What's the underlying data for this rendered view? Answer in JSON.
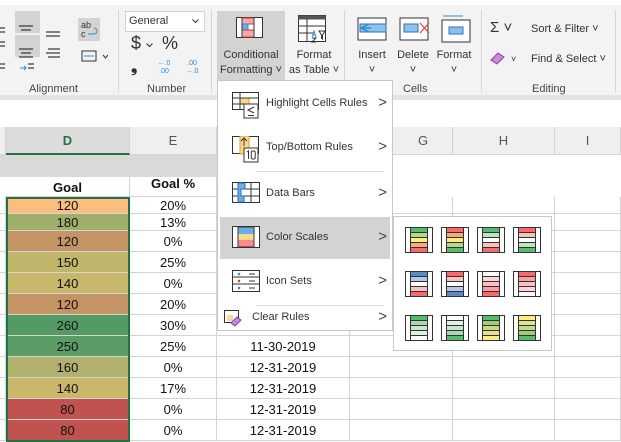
{
  "ribbon": {
    "alignment": {
      "label": "Alignment"
    },
    "number": {
      "label": "Number",
      "format_value": "General",
      "currency_symbol": "$",
      "percent_symbol": "%",
      "comma_symbol": "❟",
      "inc_decimal": "←.0 .00",
      "dec_decimal": ".00 →.0"
    },
    "styles": {
      "conditional_formatting": "Conditional",
      "conditional_formatting_2": "Formatting ˅",
      "format_as_table": "Format",
      "format_as_table_2": "as Table ˅"
    },
    "cells": {
      "label": "Cells",
      "insert": "Insert",
      "delete": "Delete",
      "format": "Format",
      "chev": "˅"
    },
    "editing": {
      "label": "Editing",
      "sum_symbol": "Σ ˅",
      "eraser_chev": "˅",
      "sort_filter": "Sort & Filter ˅",
      "find_select": "Find & Select ˅"
    }
  },
  "columns": [
    "D",
    "E",
    "G",
    "H",
    "I"
  ],
  "headers": {
    "goal": "Goal",
    "goal_pct": "Goal %"
  },
  "rows": [
    {
      "goal": "120",
      "pct": "20%",
      "date": "",
      "color": "#fbbe7f"
    },
    {
      "goal": "180",
      "pct": "13%",
      "date": "",
      "color": "#9eaf6b"
    },
    {
      "goal": "120",
      "pct": "0%",
      "date": "",
      "color": "#c59464"
    },
    {
      "goal": "150",
      "pct": "25%",
      "date": "",
      "color": "#bfb66c"
    },
    {
      "goal": "140",
      "pct": "0%",
      "date": "",
      "color": "#c9b86b"
    },
    {
      "goal": "120",
      "pct": "20%",
      "date": "",
      "color": "#c59464"
    },
    {
      "goal": "260",
      "pct": "30%",
      "date": "",
      "color": "#549a65"
    },
    {
      "goal": "250",
      "pct": "25%",
      "date": "11-30-2019",
      "color": "#5b9b66"
    },
    {
      "goal": "160",
      "pct": "0%",
      "date": "12-31-2019",
      "color": "#b1b06c"
    },
    {
      "goal": "140",
      "pct": "17%",
      "date": "12-31-2019",
      "color": "#c9b86b"
    },
    {
      "goal": "80",
      "pct": "0%",
      "date": "12-31-2019",
      "color": "#c05350"
    },
    {
      "goal": "80",
      "pct": "0%",
      "date": "12-31-2019",
      "color": "#c05350"
    }
  ],
  "menu": {
    "items": [
      {
        "label": "Highlight Cells Rules",
        "arrow": ">"
      },
      {
        "label": "Top/Bottom Rules",
        "arrow": ">"
      },
      {
        "label": "Data Bars",
        "arrow": ">"
      },
      {
        "label": "Color Scales",
        "arrow": ">"
      },
      {
        "label": "Icon Sets",
        "arrow": ">"
      },
      {
        "label": "Clear Rules",
        "arrow": ">"
      }
    ],
    "top_bottom_badge": "10",
    "highlight_badge": "≤"
  },
  "color_scales": [
    [
      "#57bb6e",
      "#b7d88a",
      "#ffeb84",
      "#fbaa77",
      "#f8696b"
    ],
    [
      "#f8696b",
      "#fbaa77",
      "#ffeb84",
      "#b7d88a",
      "#57bb6e"
    ],
    [
      "#57bb6e",
      "#bfe3c7",
      "#ffffff",
      "#fcbfc0",
      "#f8696b"
    ],
    [
      "#f8696b",
      "#fcbfc0",
      "#ffffff",
      "#bfe3c7",
      "#57bb6e"
    ],
    [
      "#5a8ac6",
      "#b4c6e7",
      "#fcfcff",
      "#fcbfc0",
      "#f8696b"
    ],
    [
      "#f8696b",
      "#fcbfc0",
      "#fcfcff",
      "#b4c6e7",
      "#5a8ac6"
    ],
    [
      "#fcfcff",
      "#fcd5d5",
      "#fcbfc0",
      "#fa9e9f",
      "#f8696b"
    ],
    [
      "#f8696b",
      "#fa9e9f",
      "#fcbfc0",
      "#fcd5d5",
      "#fcfcff"
    ],
    [
      "#57bb6e",
      "#a9d8b3",
      "#c8e6cf",
      "#e2f1e5",
      "#fcfcff"
    ],
    [
      "#fcfcff",
      "#e2f1e5",
      "#c8e6cf",
      "#a9d8b3",
      "#57bb6e"
    ],
    [
      "#57bb6e",
      "#a0cc7a",
      "#c5d98a",
      "#e0e386",
      "#ffeb84"
    ],
    [
      "#ffeb84",
      "#e0e386",
      "#c5d98a",
      "#a0cc7a",
      "#57bb6e"
    ]
  ],
  "accent": "#217346"
}
